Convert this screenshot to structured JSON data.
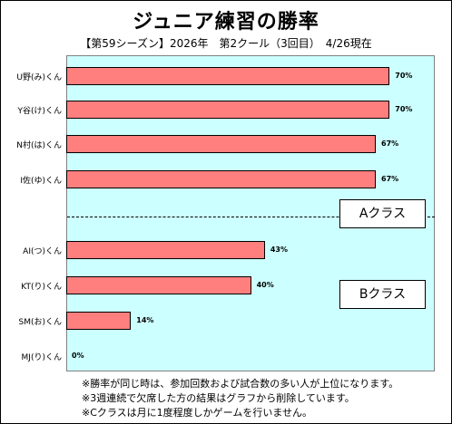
{
  "chart_data": {
    "type": "bar",
    "orientation": "horizontal",
    "title": "ジュニア練習の勝率",
    "subtitle": "【第59シーズン】2026年　第2クール（3回目）　4/26現在",
    "categories": [
      "U野(み)くん",
      "Y谷(け)くん",
      "N村(は)くん",
      "I佐(ゆ)くん",
      "AI(つ)くん",
      "KT(り)くん",
      "SM(お)くん",
      "MJ(り)くん"
    ],
    "values": [
      70,
      70,
      67,
      67,
      43,
      40,
      14,
      0
    ],
    "value_labels": [
      "70%",
      "70%",
      "67%",
      "67%",
      "43%",
      "40%",
      "14%",
      "0%"
    ],
    "xlim": [
      0,
      100
    ],
    "grid": false,
    "bar_color": "#ff7f7f",
    "plot_background": "#ccffff",
    "annotations": [
      "Aクラス",
      "Bクラス"
    ]
  },
  "notes": [
    "※勝率が同じ時は、参加回数および試合数の多い人が上位になります。",
    "※3週連続で欠席した方の結果はグラフから削除しています。",
    "※Cクラスは月に1度程度しかゲームを行いません。"
  ]
}
